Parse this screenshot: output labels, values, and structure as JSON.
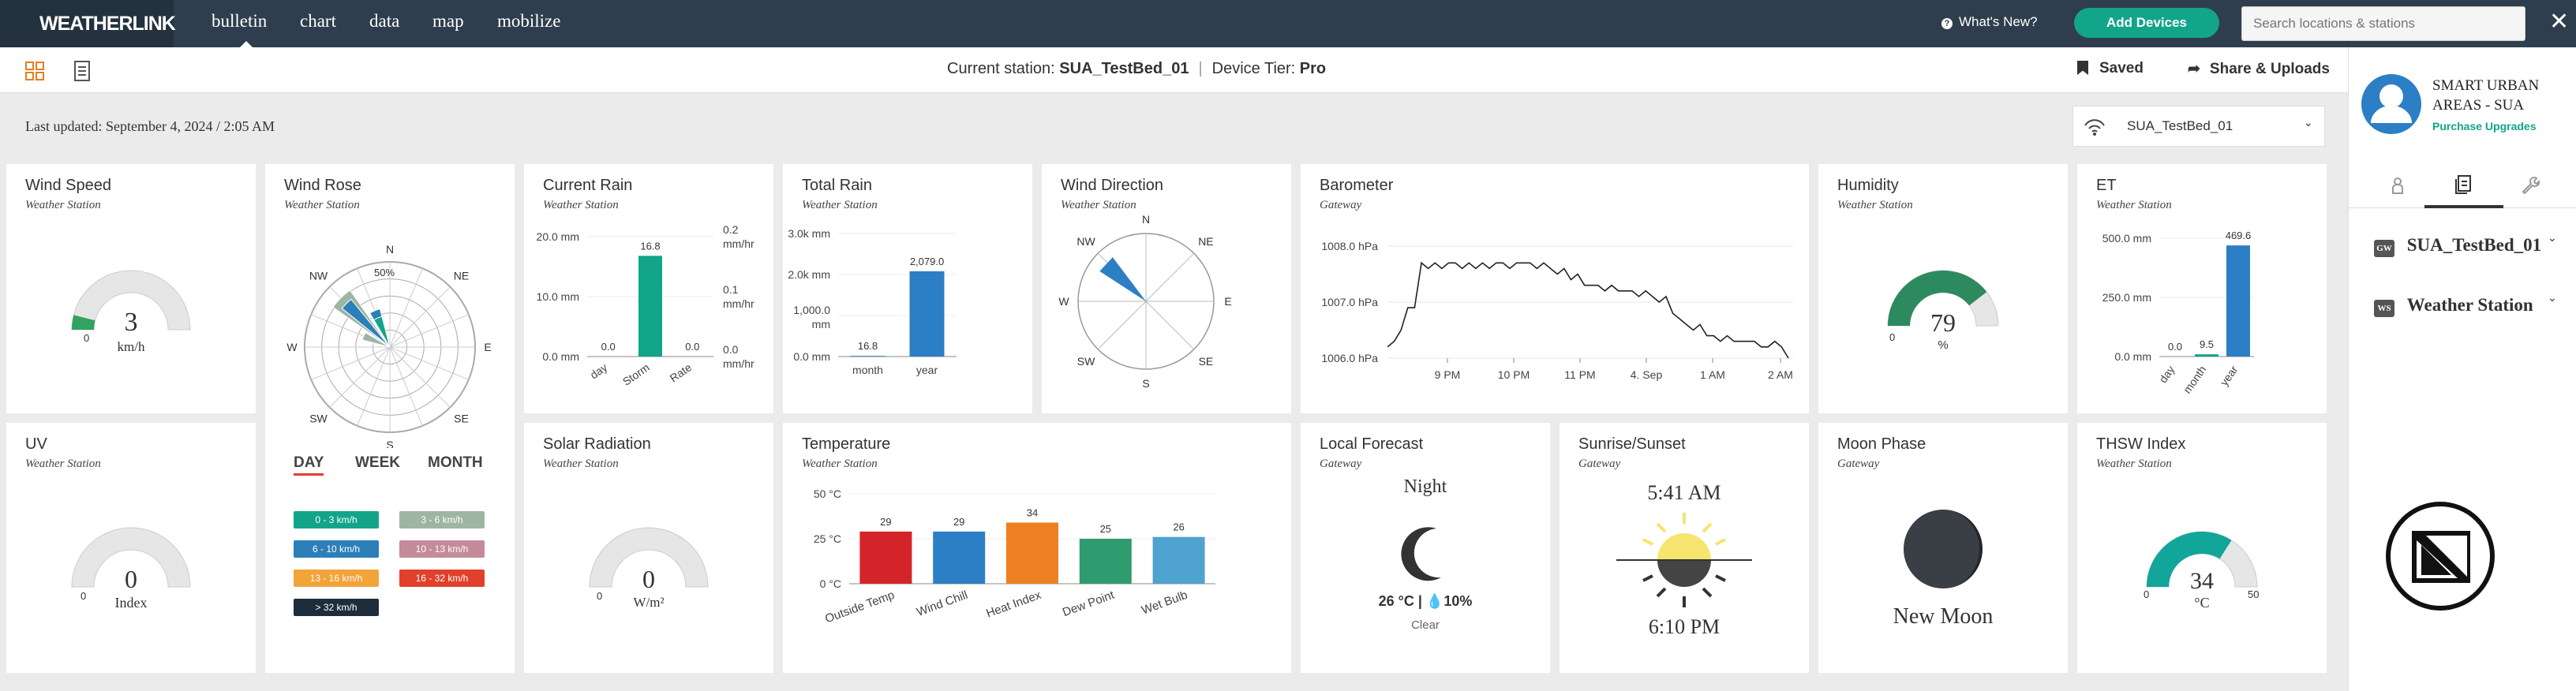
{
  "app": {
    "logo": "WEATHERLINK",
    "nav": [
      "bulletin",
      "chart",
      "data",
      "map",
      "mobilize"
    ],
    "whats_new": "What's New?",
    "add_devices": "Add Devices",
    "search_placeholder": "Search locations & stations",
    "close": "✕"
  },
  "subbar": {
    "current_station_label": "Current station:",
    "current_station": "SUA_TestBed_01",
    "device_tier_label": "Device Tier:",
    "device_tier": "Pro",
    "saved": "Saved",
    "share": "Share & Uploads"
  },
  "last_updated": "Last updated: September 4, 2024 / 2:05 AM",
  "station_select": "SUA_TestBed_01",
  "cards": {
    "wind_speed": {
      "title": "Wind Speed",
      "subtitle": "Weather Station",
      "value": "3",
      "unit": "km/h",
      "min": "0",
      "level": 0.08
    },
    "wind_rose": {
      "title": "Wind Rose",
      "subtitle": "Weather Station",
      "dirs": [
        "N",
        "NE",
        "E",
        "SE",
        "S",
        "SW",
        "W",
        "NW"
      ],
      "pct": "50%",
      "tabs": [
        "DAY",
        "WEEK",
        "MONTH"
      ],
      "legend": [
        {
          "label": "0 - 3 km/h",
          "color": "#12a58a"
        },
        {
          "label": "3 - 6 km/h",
          "color": "#9fb5a3"
        },
        {
          "label": "6 - 10 km/h",
          "color": "#2c7fb8"
        },
        {
          "label": "10 - 13 km/h",
          "color": "#c58a9c"
        },
        {
          "label": "13 - 16 km/h",
          "color": "#f2a33a"
        },
        {
          "label": "16 - 32 km/h",
          "color": "#e1402a"
        },
        {
          "label": "> 32 km/h",
          "color": "#1e2d3b"
        }
      ]
    },
    "current_rain": {
      "title": "Current Rain",
      "subtitle": "Weather Station",
      "left_ticks": [
        "20.0 mm",
        "10.0 mm",
        "0.0 mm"
      ],
      "right_ticks": [
        "0.2 mm/hr",
        "0.1 mm/hr",
        "0.0 mm/hr"
      ],
      "categories": [
        "day",
        "Storm",
        "Rate"
      ],
      "values": [
        0.0,
        16.8,
        0.0
      ],
      "labels": [
        "0.0",
        "16.8",
        "0.0"
      ]
    },
    "total_rain": {
      "title": "Total Rain",
      "subtitle": "Weather Station",
      "ticks": [
        "3.0k mm",
        "2.0k mm",
        "1,000.0 mm",
        "0.0 mm"
      ],
      "categories": [
        "month",
        "year"
      ],
      "values": [
        16.8,
        2079.0
      ],
      "labels": [
        "16.8",
        "2,079.0"
      ]
    },
    "wind_direction": {
      "title": "Wind Direction",
      "subtitle": "Weather Station",
      "dirs": [
        "N",
        "NE",
        "E",
        "SE",
        "S",
        "SW",
        "W",
        "NW"
      ]
    },
    "barometer": {
      "title": "Barometer",
      "subtitle": "Gateway",
      "yticks": [
        "1008.0 hPa",
        "1007.0 hPa",
        "1006.0 hPa"
      ],
      "xticks": [
        "9 PM",
        "10 PM",
        "11 PM",
        "4. Sep",
        "1 AM",
        "2 AM"
      ],
      "series": [
        1006.2,
        1006.3,
        1006.5,
        1006.9,
        1006.9,
        1007.7,
        1007.6,
        1007.7,
        1007.6,
        1007.7,
        1007.7,
        1007.6,
        1007.7,
        1007.6,
        1007.7,
        1007.6,
        1007.7,
        1007.7,
        1007.6,
        1007.7,
        1007.7,
        1007.7,
        1007.6,
        1007.7,
        1007.6,
        1007.5,
        1007.6,
        1007.4,
        1007.5,
        1007.3,
        1007.3,
        1007.3,
        1007.2,
        1007.3,
        1007.2,
        1007.2,
        1007.2,
        1007.1,
        1007.2,
        1007.1,
        1007.0,
        1007.1,
        1006.8,
        1006.7,
        1006.6,
        1006.5,
        1006.6,
        1006.4,
        1006.4,
        1006.3,
        1006.4,
        1006.3,
        1006.3,
        1006.3,
        1006.3,
        1006.2,
        1006.2,
        1006.3,
        1006.2,
        1006.0
      ]
    },
    "humidity": {
      "title": "Humidity",
      "subtitle": "Weather Station",
      "value": "79",
      "unit": "%",
      "min": "0",
      "level": 0.79
    },
    "et": {
      "title": "ET",
      "subtitle": "Weather Station",
      "ticks": [
        "500.0 mm",
        "250.0 mm",
        "0.0 mm"
      ],
      "categories": [
        "day",
        "month",
        "year"
      ],
      "values": [
        0.0,
        9.5,
        469.6
      ],
      "labels": [
        "0.0",
        "9.5",
        "469.6"
      ]
    },
    "uv": {
      "title": "UV",
      "subtitle": "Weather Station",
      "value": "0",
      "unit": "Index",
      "min": "0",
      "level": 0
    },
    "solar": {
      "title": "Solar Radiation",
      "subtitle": "Weather Station",
      "value": "0",
      "unit": "W/m²",
      "min": "0",
      "level": 0
    },
    "temperature": {
      "title": "Temperature",
      "subtitle": "Weather Station",
      "ticks": [
        "50 °C",
        "25 °C",
        "0 °C"
      ],
      "categories": [
        "Outside Temp",
        "Wind Chill",
        "Heat Index",
        "Dew Point",
        "Wet Bulb"
      ],
      "values": [
        29,
        29,
        34,
        25,
        26
      ],
      "labels": [
        "29",
        "29",
        "34",
        "25",
        "26"
      ],
      "colors": [
        "#d3242a",
        "#2c7fc4",
        "#ee7f22",
        "#309b6f",
        "#4fa3cf"
      ]
    },
    "forecast": {
      "title": "Local Forecast",
      "subtitle": "Gateway",
      "period": "Night",
      "temp": "26 °C |",
      "precip": "10%",
      "cond": "Clear"
    },
    "sun": {
      "title": "Sunrise/Sunset",
      "subtitle": "Gateway",
      "rise": "5:41 AM",
      "set": "6:10 PM"
    },
    "moon": {
      "title": "Moon Phase",
      "subtitle": "Gateway",
      "phase": "New Moon"
    },
    "thsw": {
      "title": "THSW Index",
      "subtitle": "Weather Station",
      "value": "34",
      "unit": "°C",
      "min": "0",
      "max": "50",
      "level": 0.68
    }
  },
  "right": {
    "org": "SMART URBAN AREAS - SUA",
    "upgrade": "Purchase Upgrades",
    "items": [
      {
        "tag": "GW",
        "label": "SUA_TestBed_01"
      },
      {
        "tag": "WS",
        "label": "Weather Station"
      }
    ]
  }
}
